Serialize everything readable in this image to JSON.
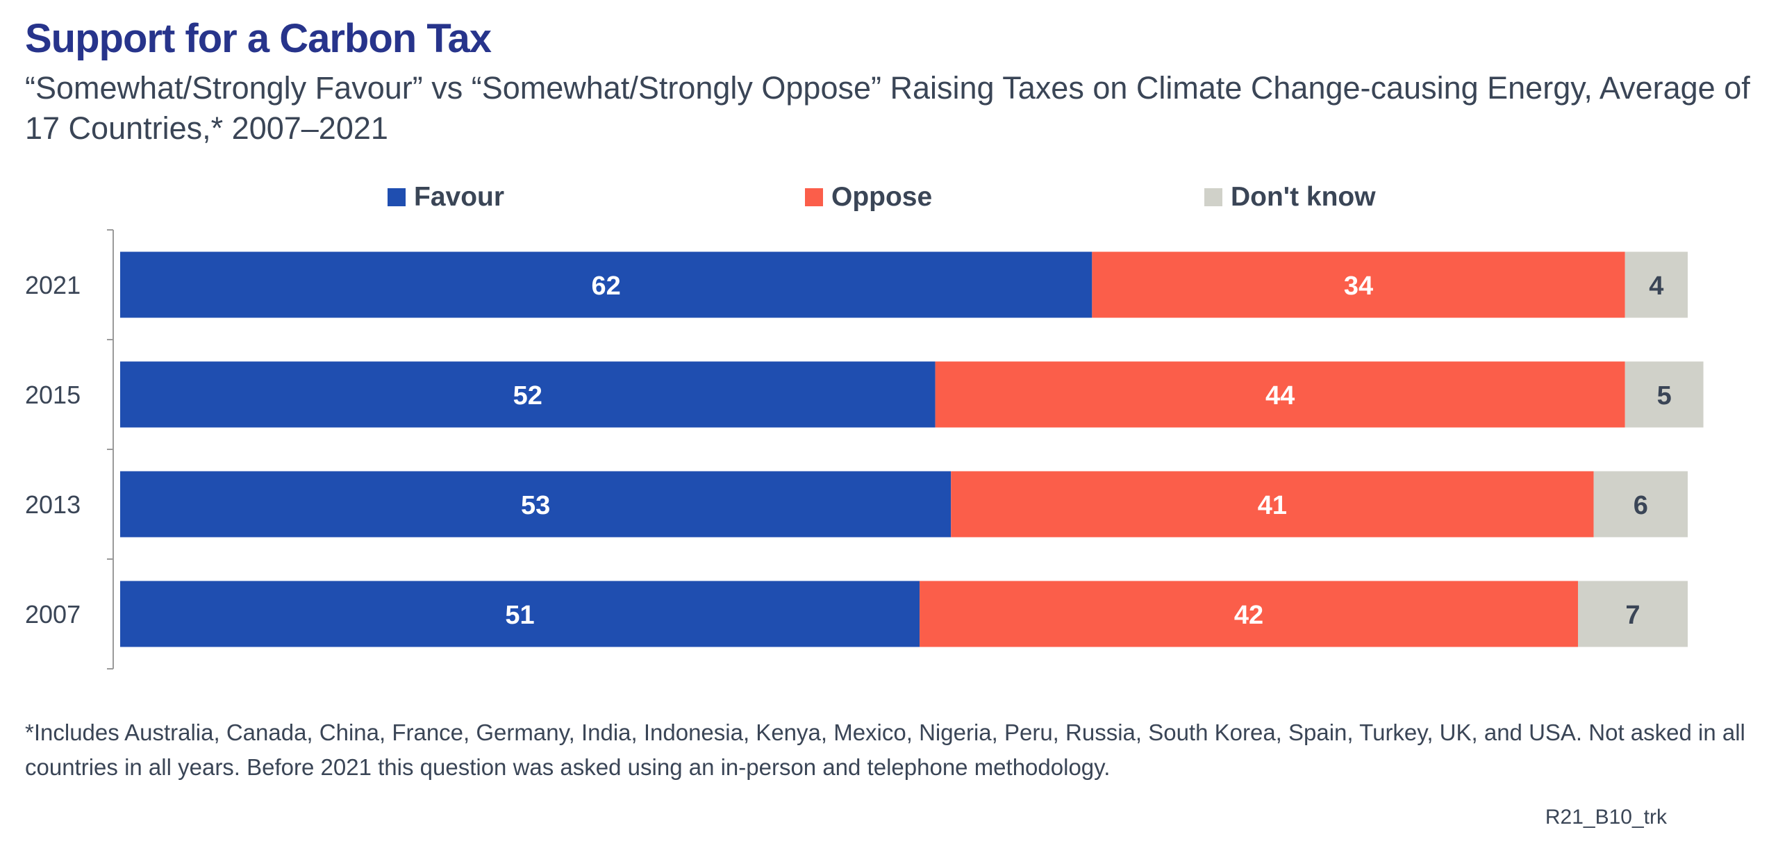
{
  "chart_data": {
    "type": "bar",
    "orientation": "horizontal",
    "stacked": true,
    "title": "Support for a Carbon Tax",
    "subtitle": "“Somewhat/Strongly Favour” vs “Somewhat/Strongly Oppose” Raising Taxes on Climate Change-causing Energy, Average of 17 Countries,* 2007–2021",
    "categories": [
      "2021",
      "2015",
      "2013",
      "2007"
    ],
    "series": [
      {
        "name": "Favour",
        "values": [
          62,
          52,
          53,
          51
        ],
        "color": "#1f4eb0",
        "label_color": "#ffffff"
      },
      {
        "name": "Oppose",
        "values": [
          34,
          44,
          41,
          42
        ],
        "color": "#fb5e4a",
        "label_color": "#ffffff"
      },
      {
        "name": "Don't know",
        "values": [
          4,
          5,
          6,
          7
        ],
        "color": "#d0d1c9",
        "label_color": "#3a4556"
      }
    ],
    "xlim": [
      0,
      100
    ],
    "grid": false,
    "legend_position": "top",
    "xlabel": "",
    "ylabel": ""
  },
  "footnote": "*Includes Australia, Canada, China, France, Germany, India, Indonesia, Kenya, Mexico, Nigeria, Peru, Russia, South Korea, Spain, Turkey, UK, and USA. Not asked in all countries in all years. Before 2021 this question was asked using an in-person and telephone methodology.",
  "chart_code": "R21_B10_trk"
}
